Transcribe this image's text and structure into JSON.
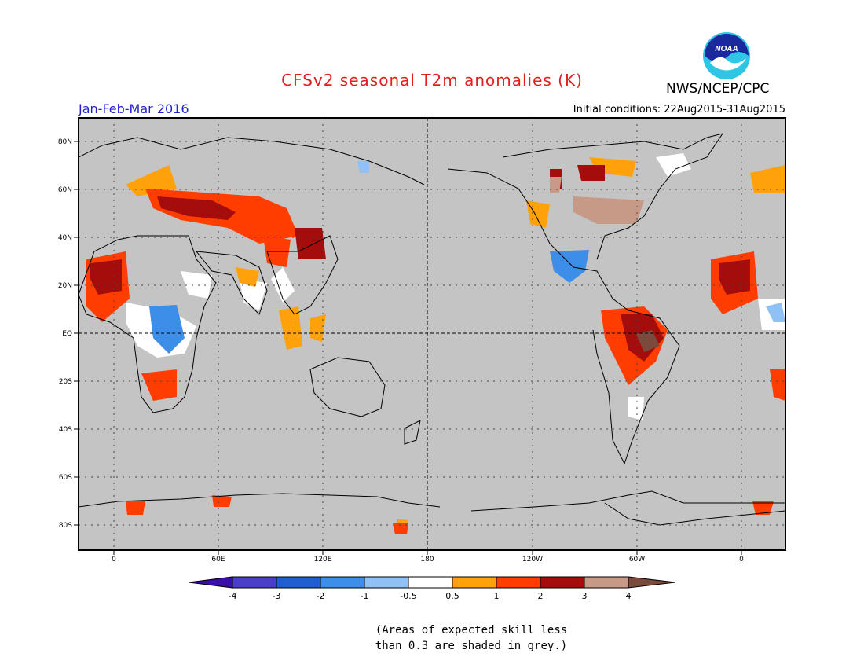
{
  "title": "CFSv2 seasonal T2m anomalies (K)",
  "period": "Jan-Feb-Mar 2016",
  "initial_conditions": "Initial conditions: 22Aug2015-31Aug2015",
  "agency": "NWS/NCEP/CPC",
  "logo": {
    "text": "NOAA",
    "icon": "noaa-logo"
  },
  "map": {
    "lat_labels": [
      "80N",
      "60N",
      "40N",
      "20N",
      "EQ",
      "20S",
      "40S",
      "60S",
      "80S"
    ],
    "lon_labels": [
      "0",
      "60E",
      "120E",
      "180",
      "120W",
      "60W",
      "0"
    ],
    "grid": "dotted",
    "background_color": "#c4c4c4"
  },
  "colorbar": {
    "tick_labels": [
      "-4",
      "-3",
      "-2",
      "-1",
      "-0.5",
      "0.5",
      "1",
      "2",
      "3",
      "4"
    ],
    "colors": [
      "#3a0fa6",
      "#4b3ec7",
      "#1f5fcf",
      "#3d8ee8",
      "#8fc1f5",
      "#ffffff",
      "#ffa10a",
      "#ff3d00",
      "#a50d0d",
      "#c79a88",
      "#7a4a3c"
    ]
  },
  "footnote": {
    "line1": "(Areas of expected skill less",
    "line2": "than 0.3 are shaded in grey.)"
  }
}
